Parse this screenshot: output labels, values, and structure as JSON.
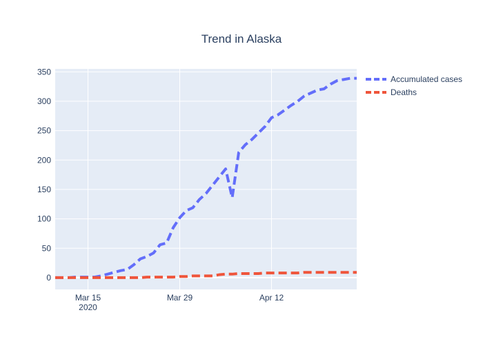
{
  "chart_data": {
    "type": "line",
    "title": "Trend in Alaska",
    "xlabel": "",
    "ylabel": "",
    "x_ticks": [
      {
        "date": "2020-03-15",
        "label": "Mar 15",
        "sublabel": "2020"
      },
      {
        "date": "2020-03-29",
        "label": "Mar 29",
        "sublabel": ""
      },
      {
        "date": "2020-04-12",
        "label": "Apr 12",
        "sublabel": ""
      }
    ],
    "y_ticks": [
      0,
      50,
      100,
      150,
      200,
      250,
      300,
      350
    ],
    "xlim": [
      "2020-03-10",
      "2020-04-25"
    ],
    "ylim": [
      -20,
      355
    ],
    "grid": true,
    "legend_position": "top-right, outside plot",
    "series": [
      {
        "name": "Accumulated cases",
        "color": "#636efa",
        "dash": "dash",
        "points": [
          [
            "2020-03-10",
            0
          ],
          [
            "2020-03-11",
            0
          ],
          [
            "2020-03-12",
            0
          ],
          [
            "2020-03-13",
            1
          ],
          [
            "2020-03-14",
            1
          ],
          [
            "2020-03-15",
            1
          ],
          [
            "2020-03-16",
            1
          ],
          [
            "2020-03-17",
            3
          ],
          [
            "2020-03-18",
            6
          ],
          [
            "2020-03-19",
            9
          ],
          [
            "2020-03-20",
            12
          ],
          [
            "2020-03-21",
            14
          ],
          [
            "2020-03-22",
            22
          ],
          [
            "2020-03-23",
            32
          ],
          [
            "2020-03-24",
            36
          ],
          [
            "2020-03-25",
            42
          ],
          [
            "2020-03-26",
            56
          ],
          [
            "2020-03-27",
            59
          ],
          [
            "2020-03-28",
            85
          ],
          [
            "2020-03-29",
            102
          ],
          [
            "2020-03-30",
            114
          ],
          [
            "2020-03-31",
            119
          ],
          [
            "2020-04-01",
            133
          ],
          [
            "2020-04-02",
            143
          ],
          [
            "2020-04-03",
            157
          ],
          [
            "2020-04-04",
            171
          ],
          [
            "2020-04-05",
            185
          ],
          [
            "2020-04-06",
            136
          ],
          [
            "2020-04-07",
            213
          ],
          [
            "2020-04-08",
            226
          ],
          [
            "2020-04-09",
            235
          ],
          [
            "2020-04-10",
            246
          ],
          [
            "2020-04-11",
            257
          ],
          [
            "2020-04-12",
            272
          ],
          [
            "2020-04-13",
            277
          ],
          [
            "2020-04-14",
            285
          ],
          [
            "2020-04-15",
            293
          ],
          [
            "2020-04-16",
            300
          ],
          [
            "2020-04-17",
            309
          ],
          [
            "2020-04-18",
            314
          ],
          [
            "2020-04-19",
            319
          ],
          [
            "2020-04-20",
            321
          ],
          [
            "2020-04-21",
            329
          ],
          [
            "2020-04-22",
            335
          ],
          [
            "2020-04-23",
            337
          ],
          [
            "2020-04-24",
            339
          ],
          [
            "2020-04-25",
            339
          ]
        ]
      },
      {
        "name": "Deaths",
        "color": "#ef553b",
        "dash": "dash",
        "points": [
          [
            "2020-03-10",
            0
          ],
          [
            "2020-03-11",
            0
          ],
          [
            "2020-03-12",
            0
          ],
          [
            "2020-03-13",
            0
          ],
          [
            "2020-03-14",
            0
          ],
          [
            "2020-03-15",
            0
          ],
          [
            "2020-03-16",
            0
          ],
          [
            "2020-03-17",
            0
          ],
          [
            "2020-03-18",
            0
          ],
          [
            "2020-03-19",
            0
          ],
          [
            "2020-03-20",
            0
          ],
          [
            "2020-03-21",
            0
          ],
          [
            "2020-03-22",
            0
          ],
          [
            "2020-03-23",
            0
          ],
          [
            "2020-03-24",
            1
          ],
          [
            "2020-03-25",
            1
          ],
          [
            "2020-03-26",
            1
          ],
          [
            "2020-03-27",
            1
          ],
          [
            "2020-03-28",
            1
          ],
          [
            "2020-03-29",
            2
          ],
          [
            "2020-03-30",
            2
          ],
          [
            "2020-03-31",
            3
          ],
          [
            "2020-04-01",
            3
          ],
          [
            "2020-04-02",
            3
          ],
          [
            "2020-04-03",
            3
          ],
          [
            "2020-04-04",
            5
          ],
          [
            "2020-04-05",
            6
          ],
          [
            "2020-04-06",
            6
          ],
          [
            "2020-04-07",
            7
          ],
          [
            "2020-04-08",
            7
          ],
          [
            "2020-04-09",
            7
          ],
          [
            "2020-04-10",
            7
          ],
          [
            "2020-04-11",
            8
          ],
          [
            "2020-04-12",
            8
          ],
          [
            "2020-04-13",
            8
          ],
          [
            "2020-04-14",
            8
          ],
          [
            "2020-04-15",
            8
          ],
          [
            "2020-04-16",
            8
          ],
          [
            "2020-04-17",
            9
          ],
          [
            "2020-04-18",
            9
          ],
          [
            "2020-04-19",
            9
          ],
          [
            "2020-04-20",
            9
          ],
          [
            "2020-04-21",
            9
          ],
          [
            "2020-04-22",
            9
          ],
          [
            "2020-04-23",
            9
          ],
          [
            "2020-04-24",
            9
          ],
          [
            "2020-04-25",
            9
          ]
        ]
      }
    ]
  }
}
